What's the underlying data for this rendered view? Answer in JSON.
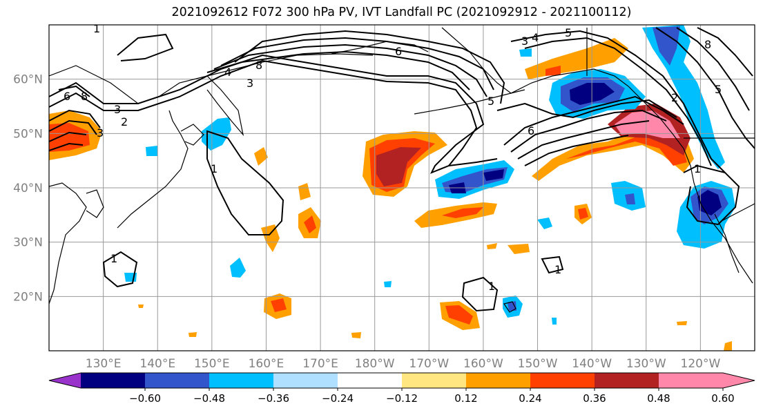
{
  "chart_data": {
    "type": "map-contour",
    "title": "2021092612 F072 300 hPa PV, IVT Landfall PC (2021092912 - 2021100112)",
    "lon_ticks": [
      "130°E",
      "140°E",
      "150°E",
      "160°E",
      "170°E",
      "180°W",
      "170°W",
      "160°W",
      "150°W",
      "140°W",
      "130°W",
      "120°W"
    ],
    "lat_ticks": [
      "20°N",
      "30°N",
      "40°N",
      "50°N",
      "60°N"
    ],
    "lon_range": [
      120,
      250
    ],
    "lat_range": [
      10,
      70
    ],
    "grid": true,
    "colorbar": {
      "extend": "both",
      "levels": [
        -0.6,
        -0.48,
        -0.36,
        -0.24,
        -0.12,
        0.12,
        0.24,
        0.36,
        0.48,
        0.6
      ],
      "tick_labels": [
        "−0.60",
        "−0.48",
        "−0.36",
        "−0.24",
        "−0.12",
        "0.12",
        "0.24",
        "0.36",
        "0.48",
        "0.60"
      ],
      "colors": [
        "#9933cc",
        "#000080",
        "#3355cc",
        "#00bfff",
        "#b0e0ff",
        "#ffffff",
        "#ffe680",
        "#ffa000",
        "#ff4000",
        "#b22222",
        "#ff88aa",
        "#ffffff"
      ]
    },
    "contour_labels": [
      "1",
      "1",
      "1",
      "1",
      "1",
      "1",
      "2",
      "2",
      "3",
      "3",
      "3",
      "3",
      "4",
      "4",
      "5",
      "5",
      "5",
      "6",
      "6",
      "6",
      "8",
      "8",
      "8"
    ]
  }
}
